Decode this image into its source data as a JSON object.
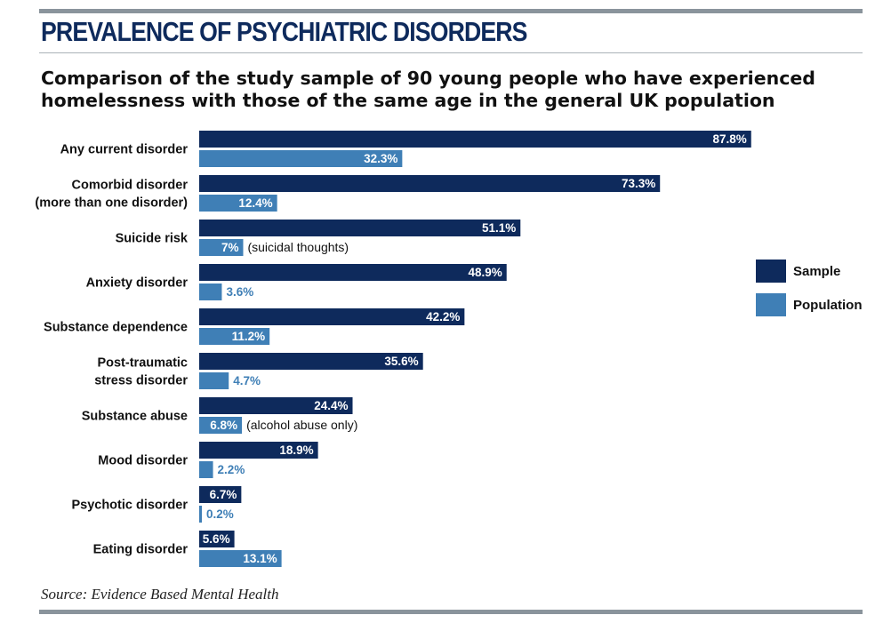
{
  "title": "PREVALENCE OF PSYCHIATRIC DISORDERS",
  "subtitle": "Comparison of the study sample of 90 young people who have experienced homelessness with those of the same age in the general UK population",
  "source": "Source: Evidence Based Mental Health",
  "colors": {
    "sample": "#0e2a5c",
    "population": "#3f7fb6",
    "rule": "#8a949c"
  },
  "chart_data": {
    "type": "bar",
    "orientation": "horizontal",
    "unit": "%",
    "categories": [
      [
        "Any current disorder"
      ],
      [
        "Comorbid disorder",
        "(more than one disorder)"
      ],
      [
        "Suicide risk"
      ],
      [
        "Anxiety disorder"
      ],
      [
        "Substance dependence"
      ],
      [
        "Post-traumatic",
        "stress disorder"
      ],
      [
        "Substance abuse"
      ],
      [
        "Mood disorder"
      ],
      [
        "Psychotic disorder"
      ],
      [
        "Eating disorder"
      ]
    ],
    "series": [
      {
        "name": "Sample",
        "values": [
          87.8,
          73.3,
          51.1,
          48.9,
          42.2,
          35.6,
          24.4,
          18.9,
          6.7,
          5.6
        ],
        "labels": [
          "87.8%",
          "73.3%",
          "51.1%",
          "48.9%",
          "42.2%",
          "35.6%",
          "24.4%",
          "18.9%",
          "6.7%",
          "5.6%"
        ],
        "color": "#0e2a5c"
      },
      {
        "name": "Population",
        "values": [
          32.3,
          12.4,
          7,
          3.6,
          11.2,
          4.7,
          6.8,
          2.2,
          0.2,
          13.1
        ],
        "labels": [
          "32.3%",
          "12.4%",
          "7%",
          "3.6%",
          "11.2%",
          "4.7%",
          "6.8%",
          "2.2%",
          "0.2%",
          "13.1%"
        ],
        "color": "#3f7fb6"
      }
    ],
    "annotations": [
      {
        "category_index": 2,
        "series": "Population",
        "text": "(suicidal thoughts)"
      },
      {
        "category_index": 6,
        "series": "Population",
        "text": "(alcohol abuse only)"
      }
    ],
    "xlim": [
      0,
      100
    ],
    "grid": false,
    "legend": "right"
  }
}
